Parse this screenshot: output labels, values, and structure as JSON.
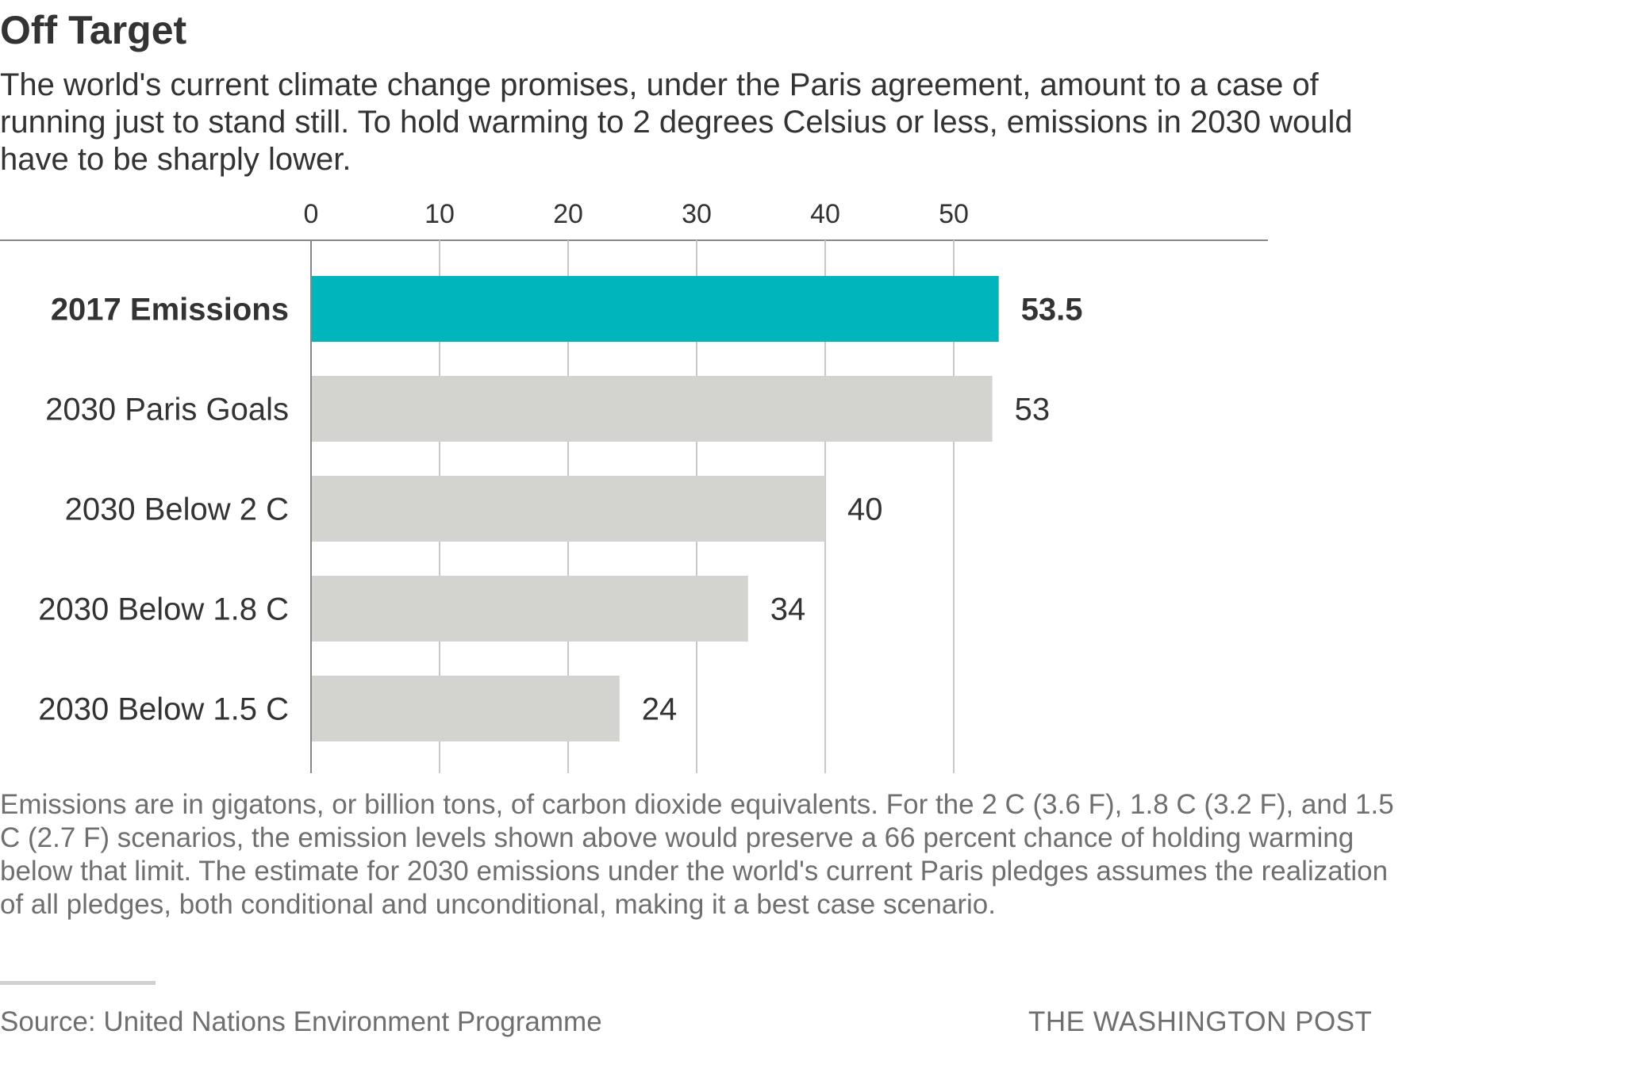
{
  "header": {
    "title": "Off Target",
    "subtitle": "The world's current climate change promises, under the Paris agreement, amount to a case of running just to stand still. To hold warming to 2 degrees Celsius or less, emissions in 2030 would have to be sharply lower."
  },
  "chart_data": {
    "type": "bar",
    "orientation": "horizontal",
    "categories": [
      "2017 Emissions",
      "2030 Paris Goals",
      "2030 Below 2 C",
      "2030 Below 1.8 C",
      "2030 Below 1.5 C"
    ],
    "values": [
      53.5,
      53,
      40,
      34,
      24
    ],
    "value_labels": [
      "53.5",
      "53",
      "40",
      "34",
      "24"
    ],
    "highlight_index": 0,
    "xlim": [
      0,
      58
    ],
    "xticks": [
      0,
      10,
      20,
      30,
      40,
      50
    ],
    "xtick_labels": [
      "0",
      "10",
      "20",
      "30",
      "40",
      "50"
    ],
    "grid": true,
    "legend": "none",
    "colors": {
      "highlight": "#00b5bb",
      "default": "#d3d3cf",
      "grid": "#c8c8c8",
      "axis": "#888888"
    }
  },
  "footer": {
    "note": "Emissions are in gigatons, or billion tons, of carbon dioxide equivalents. For the 2 C (3.6 F), 1.8 C (3.2 F), and 1.5 C (2.7 F) scenarios, the emission levels shown above would preserve a 66 percent chance of holding warming below that limit. The estimate for 2030 emissions under the world's current Paris pledges assumes the realization of all pledges, both conditional and unconditional, making it a best case scenario.",
    "source": "Source: United Nations Environment Programme",
    "credit": "THE WASHINGTON POST"
  }
}
